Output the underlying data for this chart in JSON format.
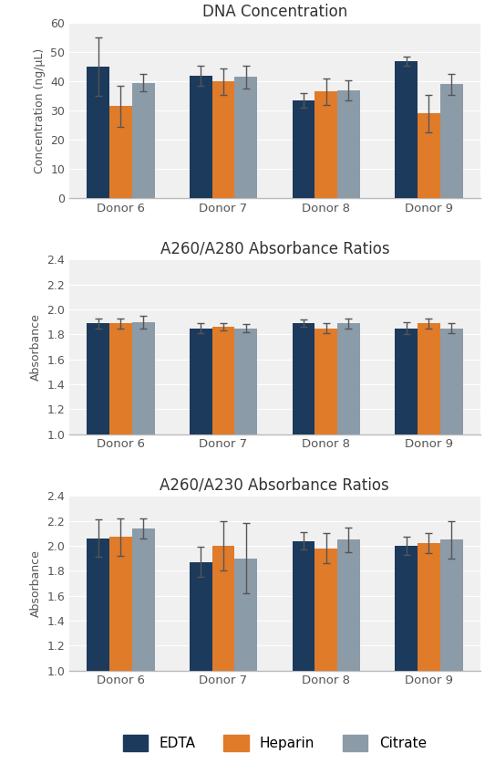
{
  "donors": [
    "Donor 6",
    "Donor 7",
    "Donor 8",
    "Donor 9"
  ],
  "colors": {
    "EDTA": "#1B3A5C",
    "Heparin": "#E07B2A",
    "Citrate": "#8C9BA8"
  },
  "conc": {
    "EDTA": [
      45.0,
      42.0,
      33.5,
      47.0
    ],
    "Heparin": [
      31.5,
      40.0,
      36.5,
      29.0
    ],
    "Citrate": [
      39.5,
      41.5,
      37.0,
      39.0
    ]
  },
  "conc_err": {
    "EDTA": [
      10.0,
      3.5,
      2.5,
      1.5
    ],
    "Heparin": [
      7.0,
      4.5,
      4.5,
      6.5
    ],
    "Citrate": [
      3.0,
      4.0,
      3.5,
      3.5
    ]
  },
  "a280": {
    "EDTA": [
      1.89,
      1.85,
      1.89,
      1.85
    ],
    "Heparin": [
      1.89,
      1.86,
      1.85,
      1.89
    ],
    "Citrate": [
      1.9,
      1.85,
      1.89,
      1.85
    ]
  },
  "a280_err": {
    "EDTA": [
      0.04,
      0.04,
      0.03,
      0.05
    ],
    "Heparin": [
      0.04,
      0.03,
      0.04,
      0.04
    ],
    "Citrate": [
      0.05,
      0.03,
      0.04,
      0.04
    ]
  },
  "a230": {
    "EDTA": [
      2.06,
      1.87,
      2.04,
      2.0
    ],
    "Heparin": [
      2.07,
      2.0,
      1.98,
      2.02
    ],
    "Citrate": [
      2.14,
      1.9,
      2.05,
      2.05
    ]
  },
  "a230_err": {
    "EDTA": [
      0.15,
      0.12,
      0.07,
      0.07
    ],
    "Heparin": [
      0.15,
      0.2,
      0.12,
      0.08
    ],
    "Citrate": [
      0.08,
      0.28,
      0.1,
      0.15
    ]
  },
  "title_conc": "DNA Concentration",
  "title_a280": "A260/A280 Absorbance Ratios",
  "title_a230": "A260/A230 Absorbance Ratios",
  "ylabel_conc": "Concentration (ng/μL)",
  "ylabel_abs": "Absorbance",
  "ylim_conc": [
    0,
    60
  ],
  "ylim_abs": [
    1.0,
    2.4
  ],
  "yticks_conc": [
    0,
    10,
    20,
    30,
    40,
    50,
    60
  ],
  "yticks_abs": [
    1.0,
    1.2,
    1.4,
    1.6,
    1.8,
    2.0,
    2.2,
    2.4
  ],
  "legend_labels": [
    "EDTA",
    "Heparin",
    "Citrate"
  ],
  "title_color": "#333333",
  "background_color": "#FFFFFF",
  "plot_bg_color": "#F0F0F0",
  "spine_color": "#BBBBBB",
  "tick_color": "#555555",
  "errorbar_color": "#555555"
}
